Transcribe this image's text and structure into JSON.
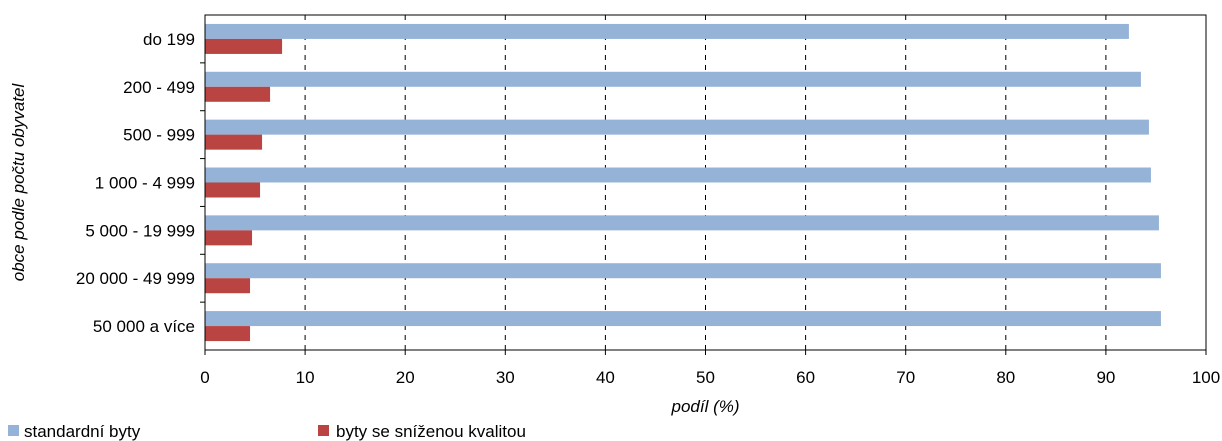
{
  "chart_data": {
    "type": "bar",
    "orientation": "horizontal",
    "categories": [
      "do 199",
      "200 - 499",
      "500 - 999",
      "1 000 - 4 999",
      "5 000 - 19 999",
      "20 000 - 49 999",
      "50 000 a více"
    ],
    "series": [
      {
        "name": "standardní byty",
        "color": "#95b3d7",
        "values": [
          92.3,
          93.5,
          94.3,
          94.5,
          95.3,
          95.5,
          95.5
        ]
      },
      {
        "name": "byty se sníženou kvalitou",
        "color": "#b94441",
        "values": [
          7.7,
          6.5,
          5.7,
          5.5,
          4.7,
          4.5,
          4.5
        ]
      }
    ],
    "xlabel": "podíl (%)",
    "ylabel": "obce podle počtu obyvatel",
    "xlim": [
      0,
      100
    ],
    "xticks": [
      0,
      10,
      20,
      30,
      40,
      50,
      60,
      70,
      80,
      90,
      100
    ],
    "grid": "vertical dashed",
    "legend_position": "bottom-left"
  }
}
